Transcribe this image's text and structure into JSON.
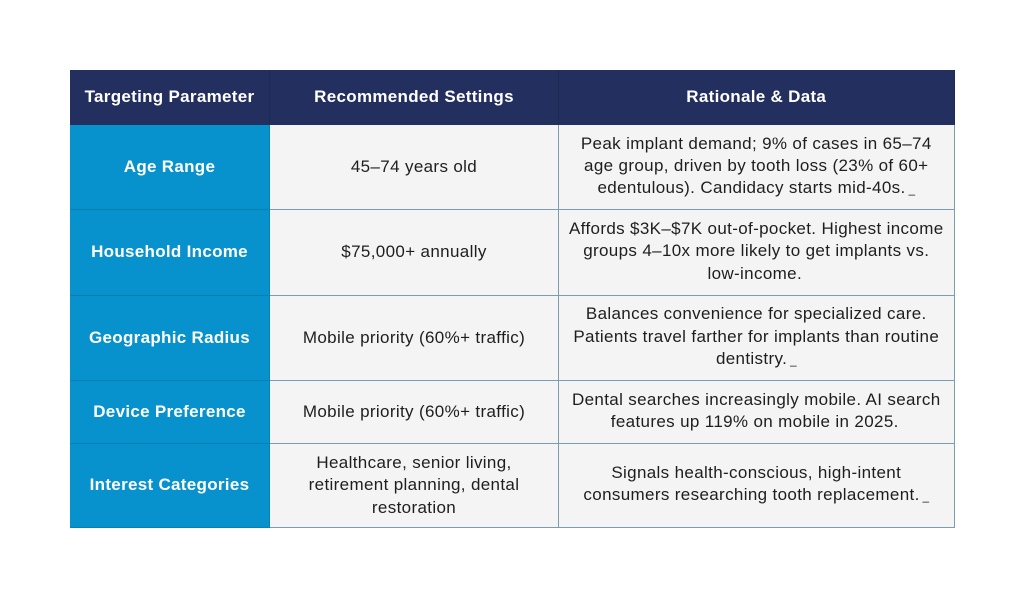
{
  "table": {
    "columns": [
      {
        "label": "Targeting Parameter"
      },
      {
        "label": "Recommended Settings"
      },
      {
        "label": "Rationale & Data"
      }
    ],
    "rows": [
      {
        "parameter": "Age Range",
        "settings": "45–74 years old",
        "rationale": "Peak implant demand; 9% of cases in 65–74\nage group, driven by tooth loss (23% of 60+\nedentulous). Candidacy starts mid-40s.",
        "citation_marker": "_"
      },
      {
        "parameter": "Household Income",
        "settings": "$75,000+ annually",
        "rationale": "Affords $3K–$7K out-of-pocket. Highest income\ngroups 4–10x more likely to get implants vs.\nlow-income.",
        "citation_marker": ""
      },
      {
        "parameter": "Geographic Radius",
        "settings": "Mobile priority (60%+ traffic)",
        "rationale": "Balances convenience for specialized care.\nPatients travel farther for implants than routine\ndentistry.",
        "citation_marker": "_"
      },
      {
        "parameter": "Device Preference",
        "settings": "Mobile priority (60%+ traffic)",
        "rationale": "Dental searches increasingly mobile. AI search\nfeatures up 119% on mobile in 2025.",
        "citation_marker": ""
      },
      {
        "parameter": "Interest Categories",
        "settings": "Healthcare, senior living,\nretirement planning, dental\nrestoration",
        "rationale": "Signals health-conscious, high-intent\nconsumers researching tooth replacement.",
        "citation_marker": "_"
      }
    ],
    "colors": {
      "header_background": "#222f5f",
      "parameter_background": "#0791cd",
      "cell_background": "#f4f4f4",
      "border": "#7a9db1",
      "header_text": "#ffffff",
      "body_text": "#1e1e1e"
    }
  }
}
